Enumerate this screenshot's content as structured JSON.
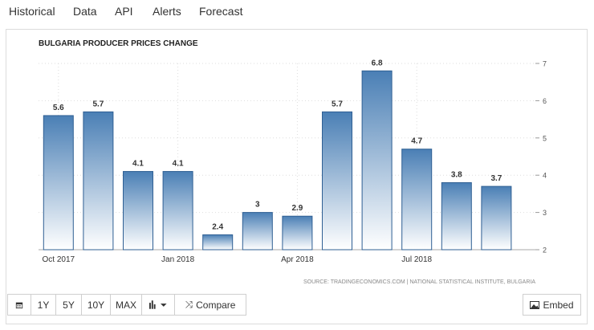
{
  "tabs": [
    {
      "label": "Historical"
    },
    {
      "label": "Data"
    },
    {
      "label": "API"
    },
    {
      "label": "Alerts"
    },
    {
      "label": "Forecast"
    }
  ],
  "chart_data": {
    "type": "bar",
    "title": "BULGARIA PRODUCER PRICES CHANGE",
    "source": "SOURCE: TRADINGECONOMICS.COM | NATIONAL STATISTICAL INSTITUTE, BULGARIA",
    "categories": [
      "2017-10",
      "2017-11",
      "2017-12",
      "2018-01",
      "2018-02",
      "2018-03",
      "2018-04",
      "2018-05",
      "2018-06",
      "2018-07",
      "2018-08",
      "2018-09"
    ],
    "values": [
      5.6,
      5.7,
      4.1,
      4.1,
      2.4,
      3,
      2.9,
      5.7,
      6.8,
      4.7,
      3.8,
      3.7
    ],
    "value_labels": [
      "5.6",
      "5.7",
      "4.1",
      "4.1",
      "2.4",
      "3",
      "2.9",
      "5.7",
      "6.8",
      "4.7",
      "3.8",
      "3.7"
    ],
    "x_tick_labels": [
      {
        "index": 0,
        "label": "Oct 2017"
      },
      {
        "index": 3,
        "label": "Jan 2018"
      },
      {
        "index": 6,
        "label": "Apr 2018"
      },
      {
        "index": 9,
        "label": "Jul 2018"
      }
    ],
    "y_ticks": [
      "2",
      "3",
      "4",
      "5",
      "6",
      "7"
    ],
    "ylim": [
      2,
      7
    ],
    "y_axis_side": "right",
    "grid": true,
    "bar_color_top": "#4a7fb5",
    "bar_color_bottom": "#ffffff"
  },
  "toolbar": {
    "calendar_icon": "calendar-icon",
    "ranges": [
      "1Y",
      "5Y",
      "10Y",
      "MAX"
    ],
    "chart_type_icon": "bar-chart-icon",
    "compare_label": "Compare",
    "embed_label": "Embed"
  }
}
